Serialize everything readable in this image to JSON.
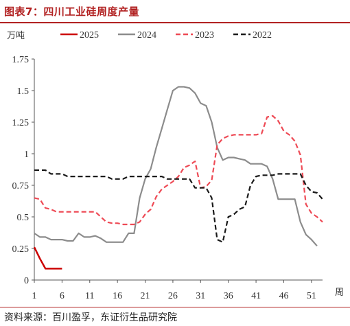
{
  "title": "图表7：四川工业硅周度产量",
  "source": "资料来源：百川盈孚，东证衍生品研究院",
  "chart_data": {
    "type": "line",
    "ylabel": "万吨",
    "xlabel": "周",
    "ylim": [
      0,
      1.75
    ],
    "xlim": [
      1,
      53
    ],
    "yticks": [
      "0",
      "0.25",
      "0.5",
      "0.75",
      "1",
      "1.25",
      "1.5",
      "1.75"
    ],
    "xticks": [
      "1",
      "6",
      "11",
      "16",
      "21",
      "26",
      "31",
      "36",
      "41",
      "46",
      "51"
    ],
    "grid": false,
    "legend_position": "top",
    "series": [
      {
        "name": "2025",
        "color": "#cc0000",
        "dash": "solid",
        "x": [
          1,
          2,
          3,
          4,
          5,
          6
        ],
        "y": [
          0.26,
          0.17,
          0.09,
          0.09,
          0.09,
          0.09
        ]
      },
      {
        "name": "2024",
        "color": "#8c8c8c",
        "dash": "solid",
        "x": [
          1,
          2,
          3,
          4,
          5,
          6,
          7,
          8,
          9,
          10,
          11,
          12,
          13,
          14,
          15,
          16,
          17,
          18,
          19,
          20,
          21,
          22,
          23,
          24,
          25,
          26,
          27,
          28,
          29,
          30,
          31,
          32,
          33,
          34,
          35,
          36,
          37,
          38,
          39,
          40,
          41,
          42,
          43,
          44,
          45,
          46,
          47,
          48,
          49,
          50,
          51,
          52
        ],
        "y": [
          0.37,
          0.34,
          0.34,
          0.32,
          0.32,
          0.32,
          0.31,
          0.31,
          0.37,
          0.34,
          0.34,
          0.35,
          0.33,
          0.3,
          0.3,
          0.3,
          0.3,
          0.37,
          0.37,
          0.65,
          0.8,
          0.88,
          1.05,
          1.2,
          1.35,
          1.5,
          1.53,
          1.53,
          1.52,
          1.48,
          1.4,
          1.38,
          1.25,
          1.05,
          0.95,
          0.97,
          0.97,
          0.96,
          0.95,
          0.92,
          0.92,
          0.92,
          0.9,
          0.8,
          0.64,
          0.64,
          0.64,
          0.64,
          0.46,
          0.36,
          0.32,
          0.27
        ]
      },
      {
        "name": "2023",
        "color": "#ee4a55",
        "dash": "dashed",
        "x": [
          1,
          2,
          3,
          4,
          5,
          6,
          7,
          8,
          9,
          10,
          11,
          12,
          13,
          14,
          15,
          16,
          17,
          18,
          19,
          20,
          21,
          22,
          23,
          24,
          25,
          26,
          27,
          28,
          29,
          30,
          31,
          32,
          33,
          34,
          35,
          36,
          37,
          38,
          39,
          40,
          41,
          42,
          43,
          44,
          45,
          46,
          47,
          48,
          49,
          50,
          51,
          52,
          53
        ],
        "y": [
          0.65,
          0.64,
          0.57,
          0.56,
          0.54,
          0.54,
          0.54,
          0.54,
          0.54,
          0.54,
          0.54,
          0.54,
          0.5,
          0.46,
          0.45,
          0.45,
          0.44,
          0.44,
          0.44,
          0.46,
          0.52,
          0.56,
          0.66,
          0.72,
          0.75,
          0.78,
          0.82,
          0.89,
          0.91,
          0.94,
          0.73,
          0.74,
          0.79,
          1.07,
          1.12,
          1.14,
          1.15,
          1.15,
          1.15,
          1.15,
          1.15,
          1.16,
          1.29,
          1.3,
          1.26,
          1.18,
          1.15,
          1.1,
          0.99,
          0.6,
          0.53,
          0.5,
          0.46
        ]
      },
      {
        "name": "2022",
        "color": "#1a1a1a",
        "dash": "dashed",
        "x": [
          1,
          2,
          3,
          4,
          5,
          6,
          7,
          8,
          9,
          10,
          11,
          12,
          13,
          14,
          15,
          16,
          17,
          18,
          19,
          20,
          21,
          22,
          23,
          24,
          25,
          26,
          27,
          28,
          29,
          30,
          31,
          32,
          33,
          34,
          35,
          36,
          37,
          38,
          39,
          40,
          41,
          42,
          43,
          44,
          45,
          46,
          47,
          48,
          49,
          50,
          51,
          52,
          53
        ],
        "y": [
          0.87,
          0.87,
          0.87,
          0.84,
          0.84,
          0.84,
          0.82,
          0.82,
          0.82,
          0.82,
          0.82,
          0.82,
          0.82,
          0.82,
          0.8,
          0.8,
          0.8,
          0.82,
          0.82,
          0.82,
          0.82,
          0.82,
          0.82,
          0.82,
          0.8,
          0.8,
          0.8,
          0.8,
          0.8,
          0.73,
          0.73,
          0.73,
          0.65,
          0.32,
          0.3,
          0.5,
          0.52,
          0.56,
          0.58,
          0.75,
          0.82,
          0.83,
          0.83,
          0.83,
          0.84,
          0.84,
          0.84,
          0.84,
          0.84,
          0.75,
          0.7,
          0.69,
          0.64
        ]
      }
    ]
  }
}
